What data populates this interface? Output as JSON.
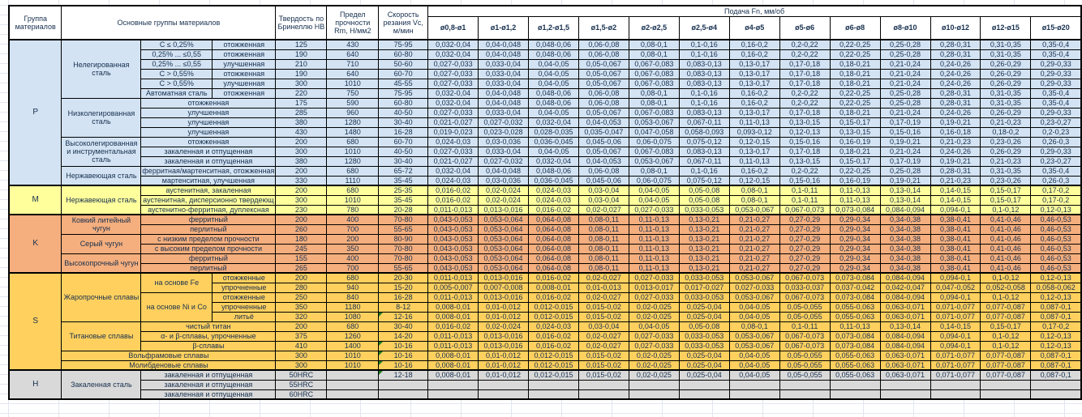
{
  "header": {
    "group_col": "Группа материалов",
    "materials_col": "Основные группы материалов",
    "hardness_col": "Твердость по Бринеллю HB",
    "strength_col": "Предел прочности Rm, Н/мм2",
    "speed_col": "Скорость резания Vc, м/мин",
    "feed_title": "Подача Fn, мм/об",
    "diameters": [
      "ø0,8-ø1",
      "ø1-ø1,2",
      "ø1,2-ø1,5",
      "ø1,5-ø2",
      "ø2-ø2,5",
      "ø2,5-ø4",
      "ø4-ø5",
      "ø5-ø6",
      "ø6-ø8",
      "ø8-ø10",
      "ø10-ø12",
      "ø12-ø15",
      "ø15-ø20"
    ]
  },
  "colors": {
    "p": "#d3e3f3",
    "m": "#ffff9c",
    "k": "#f5ae7d",
    "s": "#ffd05e",
    "h": "#d9d9d9",
    "flag_green": "#1e7d1e",
    "border": "#000000"
  },
  "feed_sets": {
    "A": [
      "0,032-0,04",
      "0,04-0,048",
      "0,048-0,06",
      "0,06-0,08",
      "0,08-0,1",
      "0,1-0,16",
      "0,16-0,2",
      "0,2-0,22",
      "0,22-0,25",
      "0,25-0,28",
      "0,28-0,31",
      "0,31-0,35",
      "0,35-0,4"
    ],
    "B": [
      "0,027-0,033",
      "0,033-0,04",
      "0,04-0,05",
      "0,05-0,067",
      "0,067-0,083",
      "0,083-0,13",
      "0,13-0,17",
      "0,17-0,18",
      "0,18-0,21",
      "0,21-0,24",
      "0,24-0,26",
      "0,26-0,29",
      "0,29-0,33"
    ],
    "C": [
      "0,021-0,027",
      "0,027-0,032",
      "0,032-0,04",
      "0,04-0,053",
      "0,053-0,067",
      "0,067-0,11",
      "0,11-0,13",
      "0,13-0,15",
      "0,15-0,17",
      "0,17-0,19",
      "0,19-0,21",
      "0,21-0,23",
      "0,23-0,27"
    ],
    "D": [
      "0,019-0,023",
      "0,023-0,028",
      "0,028-0,035",
      "0,035-0,047",
      "0,047-0,058",
      "0,058-0,093",
      "0,093-0,12",
      "0,12-0,13",
      "0,13-0,15",
      "0,15-0,16",
      "0,16-0,18",
      "0,18-0,2",
      "0,2-0,23"
    ],
    "E": [
      "0,024-0,03",
      "0,03-0,036",
      "0,036-0,045",
      "0,045-0,06",
      "0,06-0,075",
      "0,075-0,12",
      "0,12-0,15",
      "0,15-0,16",
      "0,16-0,19",
      "0,19-0,21",
      "0,21-0,23",
      "0,23-0,26",
      "0,26-0,3"
    ],
    "F": [
      "0,016-0,02",
      "0,02-0,024",
      "0,024-0,03",
      "0,03-0,04",
      "0,04-0,05",
      "0,05-0,08",
      "0,08-0,1",
      "0,1-0,11",
      "0,11-0,13",
      "0,13-0,14",
      "0,14-0,15",
      "0,15-0,17",
      "0,17-0,2"
    ],
    "G": [
      "0,011-0,013",
      "0,013-0,016",
      "0,016-0,02",
      "0,02-0,027",
      "0,027-0,033",
      "0,033-0,053",
      "0,053-0,067",
      "0,067-0,073",
      "0,073-0,084",
      "0,084-0,094",
      "0,094-0,1",
      "0,1-0,12",
      "0,12-0,13"
    ],
    "K": [
      "0,043-0,053",
      "0,053-0,064",
      "0,064-0,08",
      "0,08-0,11",
      "0,11-0,13",
      "0,13-0,21",
      "0,21-0,27",
      "0,27-0,29",
      "0,29-0,34",
      "0,34-0,38",
      "0,38-0,41",
      "0,41-0,46",
      "0,46-0,53"
    ],
    "S2": [
      "0,005-0,007",
      "0,007-0,008",
      "0,008-0,01",
      "0,01-0,013",
      "0,013-0,017",
      "0,017-0,027",
      "0,027-0,033",
      "0,033-0,037",
      "0,037-0,042",
      "0,042-0,047",
      "0,047-0,052",
      "0,052-0,058",
      "0,058-0,062"
    ],
    "H": [
      "0,008-0,01",
      "0,01-0,012",
      "0,012-0,015",
      "0,015-0,02",
      "0,02-0,025",
      "0,025-0,04",
      "0,04-0,05",
      "0,05-0,055",
      "0,055-0,063",
      "0,063-0,071",
      "0,071-0,077",
      "0,077-0,087",
      "0,087-0,1"
    ],
    "EMPTY": [
      "",
      "",
      "",
      "",
      "",
      "",
      "",
      "",
      "",
      "",
      "",
      "",
      ""
    ]
  },
  "groups": [
    {
      "label": "P",
      "key": "p",
      "rows": [
        {
          "mat": "Нелегированная сталь",
          "mat_rs": 6,
          "sub": "C ≤ 0,25%",
          "state": "отожженная",
          "hb": "125",
          "rm": "430",
          "vc": "75-95",
          "feeds": "A"
        },
        {
          "sub": "0,25% ... ≤0,55",
          "state": "отожженная",
          "hb": "190",
          "rm": "640",
          "vc": "60-80",
          "feeds": "A"
        },
        {
          "sub": "0,25% ... ≤0,55",
          "state": "улучшенная",
          "hb": "210",
          "rm": "710",
          "vc": "50-60",
          "feeds": "B"
        },
        {
          "sub": "C > 0,55%",
          "state": "отожженная",
          "hb": "190",
          "rm": "640",
          "vc": "60-70",
          "feeds": "B"
        },
        {
          "sub": "C > 0,55%",
          "state": "улучшенная",
          "hb": "300",
          "rm": "1010",
          "vc": "45-55",
          "feeds": "B"
        },
        {
          "sub": "Автоматная сталь",
          "state": "отожженная",
          "hb": "220",
          "rm": "750",
          "vc": "75-95",
          "feeds": "A"
        },
        {
          "mat": "Низколегированная сталь",
          "mat_rs": 4,
          "state2": "отожженная",
          "hb": "175",
          "rm": "590",
          "vc": "60-80",
          "feeds": "A"
        },
        {
          "state2": "улучшенная",
          "hb": "285",
          "rm": "960",
          "vc": "40-50",
          "feeds": "B"
        },
        {
          "state2": "улучшенная",
          "hb": "380",
          "rm": "1280",
          "vc": "30-40",
          "feeds": "C"
        },
        {
          "state2": "улучшенная",
          "hb": "430",
          "rm": "1480",
          "vc": "16-28",
          "feeds": "D"
        },
        {
          "mat": "Высоколегированная и инструментальная сталь",
          "mat_rs": 3,
          "state2": "отожженная",
          "hb": "200",
          "rm": "680",
          "vc": "60-70",
          "feeds": "E"
        },
        {
          "state2": "закаленная и отпущенная",
          "hb": "300",
          "rm": "1010",
          "vc": "40-50",
          "feeds": "B"
        },
        {
          "state2": "закаленная и отпущенная",
          "hb": "380",
          "rm": "1280",
          "vc": "30-40",
          "feeds": "C"
        },
        {
          "mat": "Нержавеющая сталь",
          "mat_rs": 2,
          "state2": "ферритная/мартенситная, отожженная",
          "hb": "200",
          "rm": "680",
          "vc": "65-72",
          "feeds": "A"
        },
        {
          "state2": "мартенситная, улучшенная",
          "hb": "330",
          "rm": "1110",
          "vc": "35-45",
          "feeds": "E"
        }
      ]
    },
    {
      "label": "M",
      "key": "m",
      "rows": [
        {
          "mat": "Нержавеющая сталь",
          "mat_rs": 3,
          "state2": "аустенитная, закаленная",
          "hb": "200",
          "rm": "680",
          "vc": "25-35",
          "feeds": "F"
        },
        {
          "state2": "аустенитная, дисперсионно твердеющ",
          "hb": "300",
          "rm": "1010",
          "vc": "35-45",
          "feeds": "F"
        },
        {
          "state2": "аустенитно-ферритная, дуплексная",
          "hb": "230",
          "rm": "780",
          "vc": "20-28",
          "feeds": "G"
        }
      ]
    },
    {
      "label": "K",
      "key": "k",
      "rows": [
        {
          "mat": "Ковкий литейный чугун",
          "mat_rs": 2,
          "state2": "ферритный",
          "hb": "200",
          "rm": "400",
          "vc": "70-80",
          "feeds": "K"
        },
        {
          "state2": "перлитный",
          "hb": "260",
          "rm": "700",
          "vc": "55-65",
          "feeds": "K"
        },
        {
          "mat": "Серый чугун",
          "mat_rs": 2,
          "state2": "с низким пределом прочности",
          "hb": "180",
          "rm": "200",
          "vc": "80-90",
          "feeds": "K"
        },
        {
          "state2": "с высоким пределом прочности",
          "hb": "245",
          "rm": "350",
          "vc": "70-80",
          "feeds": "K"
        },
        {
          "mat": "Высокопрочный чугун",
          "mat_rs": 2,
          "state2": "ферритный",
          "hb": "155",
          "rm": "400",
          "vc": "70-80",
          "feeds": "K"
        },
        {
          "state2": "перлитный",
          "hb": "265",
          "rm": "700",
          "vc": "55-65",
          "feeds": "K"
        }
      ]
    },
    {
      "label": "S",
      "key": "s",
      "rows": [
        {
          "mat": "Жаропрочные сплавы",
          "mat_rs": 5,
          "sub": "на основе Fe",
          "sub_rs": 2,
          "state": "отожженные",
          "hb": "200",
          "rm": "680",
          "vc": "20-30",
          "feeds": "G"
        },
        {
          "state": "упрочненные",
          "hb": "280",
          "rm": "940",
          "vc": "15-20",
          "feeds": "S2"
        },
        {
          "sub": "на основе Ni и Co",
          "sub_rs": 3,
          "state": "отожженные",
          "hb": "250",
          "rm": "840",
          "vc": "16-28",
          "feeds": "G"
        },
        {
          "state": "упрочненные",
          "hb": "350",
          "rm": "1180",
          "vc": "8-12",
          "feeds": "H"
        },
        {
          "state": "литьё",
          "hb": "320",
          "rm": "1080",
          "vc": "12-16",
          "flag": true,
          "feeds": "H"
        },
        {
          "mat": "Титановые сплавы",
          "mat_rs": 3,
          "state2": "чистый титан",
          "hb": "200",
          "rm": "680",
          "vc": "30-40",
          "feeds": "F"
        },
        {
          "state2": "α- и β-сплавы, упрочненные",
          "hb": "375",
          "rm": "1260",
          "vc": "14-20",
          "feeds": "G"
        },
        {
          "state2": "β-сплавы",
          "hb": "410",
          "rm": "1400",
          "vc": "10-16",
          "flag": true,
          "feeds": "G"
        },
        {
          "wide": "Вольфрамовые сплавы",
          "hb": "300",
          "rm": "1010",
          "vc": "10-16",
          "flag": true,
          "feeds": "H"
        },
        {
          "wide": "Молибденовые сплавы",
          "hb": "300",
          "rm": "1010",
          "vc": "10-16",
          "flag": true,
          "feeds": "H"
        }
      ]
    },
    {
      "label": "H",
      "key": "h",
      "rows": [
        {
          "mat": "Закаленная сталь",
          "mat_rs": 3,
          "state2": "закаленная и отпущенная",
          "hb": "50HRC",
          "rm": "",
          "vc": "12-18",
          "flag": true,
          "feeds": "H"
        },
        {
          "state2": "закаленная и отпущенная",
          "hb": "55HRC",
          "rm": "",
          "vc": "",
          "feeds": "EMPTY"
        },
        {
          "state2": "закаленная и отпущенная",
          "hb": "60HRC",
          "rm": "",
          "vc": "",
          "feeds": "EMPTY"
        }
      ]
    }
  ]
}
